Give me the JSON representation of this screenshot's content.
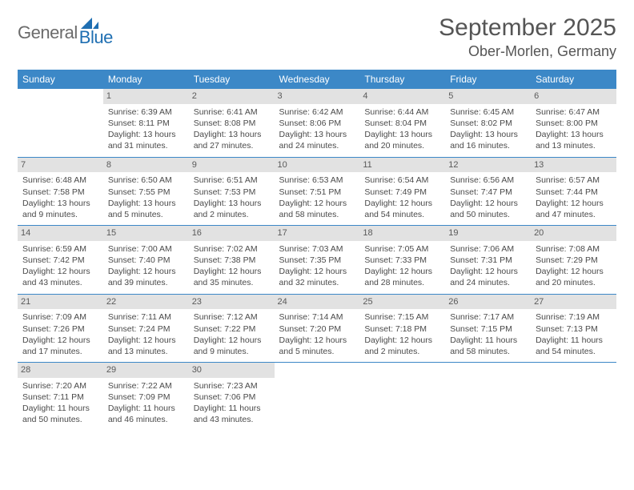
{
  "logo": {
    "text1": "General",
    "text2": "Blue"
  },
  "title": "September 2025",
  "location": "Ober-Morlen, Germany",
  "dayHeaders": [
    "Sunday",
    "Monday",
    "Tuesday",
    "Wednesday",
    "Thursday",
    "Friday",
    "Saturday"
  ],
  "colors": {
    "headerBg": "#3c88c7",
    "headerText": "#ffffff",
    "daynumBg": "#e2e2e2",
    "bodyText": "#4a4a4a",
    "rule": "#3c88c7",
    "logoBlue": "#1f6fb2"
  },
  "weeks": [
    [
      null,
      {
        "n": "1",
        "sr": "Sunrise: 6:39 AM",
        "ss": "Sunset: 8:11 PM",
        "d1": "Daylight: 13 hours",
        "d2": "and 31 minutes."
      },
      {
        "n": "2",
        "sr": "Sunrise: 6:41 AM",
        "ss": "Sunset: 8:08 PM",
        "d1": "Daylight: 13 hours",
        "d2": "and 27 minutes."
      },
      {
        "n": "3",
        "sr": "Sunrise: 6:42 AM",
        "ss": "Sunset: 8:06 PM",
        "d1": "Daylight: 13 hours",
        "d2": "and 24 minutes."
      },
      {
        "n": "4",
        "sr": "Sunrise: 6:44 AM",
        "ss": "Sunset: 8:04 PM",
        "d1": "Daylight: 13 hours",
        "d2": "and 20 minutes."
      },
      {
        "n": "5",
        "sr": "Sunrise: 6:45 AM",
        "ss": "Sunset: 8:02 PM",
        "d1": "Daylight: 13 hours",
        "d2": "and 16 minutes."
      },
      {
        "n": "6",
        "sr": "Sunrise: 6:47 AM",
        "ss": "Sunset: 8:00 PM",
        "d1": "Daylight: 13 hours",
        "d2": "and 13 minutes."
      }
    ],
    [
      {
        "n": "7",
        "sr": "Sunrise: 6:48 AM",
        "ss": "Sunset: 7:58 PM",
        "d1": "Daylight: 13 hours",
        "d2": "and 9 minutes."
      },
      {
        "n": "8",
        "sr": "Sunrise: 6:50 AM",
        "ss": "Sunset: 7:55 PM",
        "d1": "Daylight: 13 hours",
        "d2": "and 5 minutes."
      },
      {
        "n": "9",
        "sr": "Sunrise: 6:51 AM",
        "ss": "Sunset: 7:53 PM",
        "d1": "Daylight: 13 hours",
        "d2": "and 2 minutes."
      },
      {
        "n": "10",
        "sr": "Sunrise: 6:53 AM",
        "ss": "Sunset: 7:51 PM",
        "d1": "Daylight: 12 hours",
        "d2": "and 58 minutes."
      },
      {
        "n": "11",
        "sr": "Sunrise: 6:54 AM",
        "ss": "Sunset: 7:49 PM",
        "d1": "Daylight: 12 hours",
        "d2": "and 54 minutes."
      },
      {
        "n": "12",
        "sr": "Sunrise: 6:56 AM",
        "ss": "Sunset: 7:47 PM",
        "d1": "Daylight: 12 hours",
        "d2": "and 50 minutes."
      },
      {
        "n": "13",
        "sr": "Sunrise: 6:57 AM",
        "ss": "Sunset: 7:44 PM",
        "d1": "Daylight: 12 hours",
        "d2": "and 47 minutes."
      }
    ],
    [
      {
        "n": "14",
        "sr": "Sunrise: 6:59 AM",
        "ss": "Sunset: 7:42 PM",
        "d1": "Daylight: 12 hours",
        "d2": "and 43 minutes."
      },
      {
        "n": "15",
        "sr": "Sunrise: 7:00 AM",
        "ss": "Sunset: 7:40 PM",
        "d1": "Daylight: 12 hours",
        "d2": "and 39 minutes."
      },
      {
        "n": "16",
        "sr": "Sunrise: 7:02 AM",
        "ss": "Sunset: 7:38 PM",
        "d1": "Daylight: 12 hours",
        "d2": "and 35 minutes."
      },
      {
        "n": "17",
        "sr": "Sunrise: 7:03 AM",
        "ss": "Sunset: 7:35 PM",
        "d1": "Daylight: 12 hours",
        "d2": "and 32 minutes."
      },
      {
        "n": "18",
        "sr": "Sunrise: 7:05 AM",
        "ss": "Sunset: 7:33 PM",
        "d1": "Daylight: 12 hours",
        "d2": "and 28 minutes."
      },
      {
        "n": "19",
        "sr": "Sunrise: 7:06 AM",
        "ss": "Sunset: 7:31 PM",
        "d1": "Daylight: 12 hours",
        "d2": "and 24 minutes."
      },
      {
        "n": "20",
        "sr": "Sunrise: 7:08 AM",
        "ss": "Sunset: 7:29 PM",
        "d1": "Daylight: 12 hours",
        "d2": "and 20 minutes."
      }
    ],
    [
      {
        "n": "21",
        "sr": "Sunrise: 7:09 AM",
        "ss": "Sunset: 7:26 PM",
        "d1": "Daylight: 12 hours",
        "d2": "and 17 minutes."
      },
      {
        "n": "22",
        "sr": "Sunrise: 7:11 AM",
        "ss": "Sunset: 7:24 PM",
        "d1": "Daylight: 12 hours",
        "d2": "and 13 minutes."
      },
      {
        "n": "23",
        "sr": "Sunrise: 7:12 AM",
        "ss": "Sunset: 7:22 PM",
        "d1": "Daylight: 12 hours",
        "d2": "and 9 minutes."
      },
      {
        "n": "24",
        "sr": "Sunrise: 7:14 AM",
        "ss": "Sunset: 7:20 PM",
        "d1": "Daylight: 12 hours",
        "d2": "and 5 minutes."
      },
      {
        "n": "25",
        "sr": "Sunrise: 7:15 AM",
        "ss": "Sunset: 7:18 PM",
        "d1": "Daylight: 12 hours",
        "d2": "and 2 minutes."
      },
      {
        "n": "26",
        "sr": "Sunrise: 7:17 AM",
        "ss": "Sunset: 7:15 PM",
        "d1": "Daylight: 11 hours",
        "d2": "and 58 minutes."
      },
      {
        "n": "27",
        "sr": "Sunrise: 7:19 AM",
        "ss": "Sunset: 7:13 PM",
        "d1": "Daylight: 11 hours",
        "d2": "and 54 minutes."
      }
    ],
    [
      {
        "n": "28",
        "sr": "Sunrise: 7:20 AM",
        "ss": "Sunset: 7:11 PM",
        "d1": "Daylight: 11 hours",
        "d2": "and 50 minutes."
      },
      {
        "n": "29",
        "sr": "Sunrise: 7:22 AM",
        "ss": "Sunset: 7:09 PM",
        "d1": "Daylight: 11 hours",
        "d2": "and 46 minutes."
      },
      {
        "n": "30",
        "sr": "Sunrise: 7:23 AM",
        "ss": "Sunset: 7:06 PM",
        "d1": "Daylight: 11 hours",
        "d2": "and 43 minutes."
      },
      null,
      null,
      null,
      null
    ]
  ]
}
